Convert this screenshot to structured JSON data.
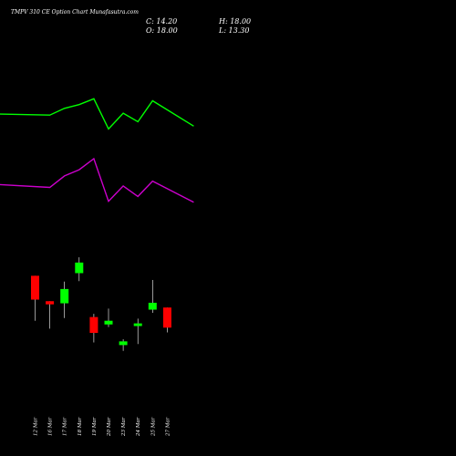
{
  "header": {
    "title": "TMPV 310  CE Option  Chart Munafasutra.com",
    "close": "C: 14.20",
    "open": "O: 18.00",
    "high": "H: 18.00",
    "low": "L: 13.30"
  },
  "colors": {
    "background": "#000000",
    "up": "#00ff00",
    "down": "#ff0000",
    "upper_line": "#00ff00",
    "lower_line": "#cc00cc",
    "wick": "#ffffff",
    "text": "#ffffff"
  },
  "chart_data": {
    "type": "candlestick",
    "categories": [
      "12 Mar",
      "16 Mar",
      "17 Mar",
      "18 Mar",
      "19 Mar",
      "20 Mar",
      "23 Mar",
      "24 Mar",
      "25 Mar",
      "27 Mar"
    ],
    "candles": [
      {
        "open": 24.0,
        "high": 24.0,
        "low": 15.5,
        "close": 19.5
      },
      {
        "open": 19.2,
        "high": 19.2,
        "low": 14.0,
        "close": 18.6
      },
      {
        "open": 18.8,
        "high": 22.9,
        "low": 16.0,
        "close": 21.5
      },
      {
        "open": 24.5,
        "high": 27.5,
        "low": 23.0,
        "close": 26.5
      },
      {
        "open": 16.2,
        "high": 16.8,
        "low": 11.4,
        "close": 13.2
      },
      {
        "open": 14.8,
        "high": 17.8,
        "low": 14.3,
        "close": 15.5
      },
      {
        "open": 10.9,
        "high": 12.0,
        "low": 9.8,
        "close": 11.6
      },
      {
        "open": 14.5,
        "high": 15.9,
        "low": 11.1,
        "close": 15.0
      },
      {
        "open": 17.6,
        "high": 23.2,
        "low": 17.0,
        "close": 18.9
      },
      {
        "open": 18.0,
        "high": 18.0,
        "low": 13.3,
        "close": 14.2
      }
    ],
    "upper_band": [
      28.5,
      28.2,
      29.6,
      30.4,
      31.6,
      25.3,
      28.6,
      26.8,
      31.2,
      25.9
    ],
    "lower_band": [
      13.9,
      13.1,
      15.5,
      16.8,
      19.1,
      10.2,
      13.4,
      11.2,
      14.4,
      10.0
    ],
    "band_x_extent": [
      -3.6,
      10.8
    ],
    "grid": false
  }
}
